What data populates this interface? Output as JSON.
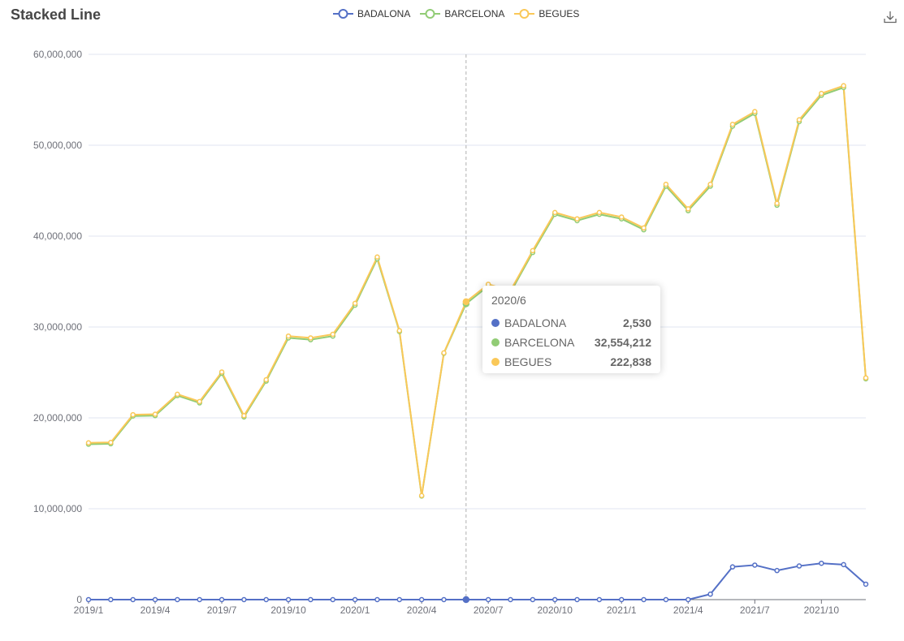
{
  "title": "Stacked Line",
  "legend": [
    {
      "name": "BADALONA",
      "color": "#5470c6"
    },
    {
      "name": "BARCELONA",
      "color": "#91cc75"
    },
    {
      "name": "BEGUES",
      "color": "#fac858"
    }
  ],
  "icons": {
    "download": "download-icon"
  },
  "tooltip": {
    "title": "2020/6",
    "rows": [
      {
        "name": "BADALONA",
        "value": "2,530",
        "color": "#5470c6"
      },
      {
        "name": "BARCELONA",
        "value": "32,554,212",
        "color": "#91cc75"
      },
      {
        "name": "BEGUES",
        "value": "222,838",
        "color": "#fac858"
      }
    ]
  },
  "chart_data": {
    "type": "line",
    "title": "Stacked Line",
    "x": [
      "2019/1",
      "2019/2",
      "2019/3",
      "2019/4",
      "2019/5",
      "2019/6",
      "2019/7",
      "2019/8",
      "2019/9",
      "2019/10",
      "2019/11",
      "2019/12",
      "2020/1",
      "2020/2",
      "2020/3",
      "2020/4",
      "2020/5",
      "2020/6",
      "2020/7",
      "2020/8",
      "2020/9",
      "2020/10",
      "2020/11",
      "2020/12",
      "2021/1",
      "2021/2",
      "2021/3",
      "2021/4",
      "2021/5",
      "2021/6",
      "2021/7",
      "2021/8",
      "2021/9",
      "2021/10",
      "2021/11",
      "2021/12"
    ],
    "x_tick_labels": [
      "2019/1",
      "2019/4",
      "2019/7",
      "2019/10",
      "2020/1",
      "2020/4",
      "2020/7",
      "2020/10",
      "2021/1",
      "2021/4",
      "2021/7",
      "2021/10"
    ],
    "ylim": [
      0,
      60000000
    ],
    "y_tick_labels": [
      "0",
      "10,000,000",
      "20,000,000",
      "30,000,000",
      "40,000,000",
      "50,000,000",
      "60,000,000"
    ],
    "grid": true,
    "legend_position": "top-center",
    "highlight_x": "2020/6",
    "series": [
      {
        "name": "BADALONA",
        "color": "#5470c6",
        "values": [
          0,
          0,
          0,
          0,
          0,
          0,
          0,
          0,
          0,
          0,
          0,
          0,
          0,
          0,
          0,
          0,
          0,
          2530,
          0,
          0,
          0,
          0,
          0,
          0,
          0,
          0,
          0,
          0,
          600000,
          3600000,
          3800000,
          3200000,
          3700000,
          4000000,
          3850000,
          1700000
        ]
      },
      {
        "name": "BARCELONA",
        "color": "#91cc75",
        "values": [
          17100000,
          17150000,
          20200000,
          20250000,
          22450000,
          21650000,
          24900000,
          20100000,
          24050000,
          28800000,
          28600000,
          29000000,
          32400000,
          37500000,
          29500000,
          11400000,
          27100000,
          32554212,
          34500000,
          33800000,
          38200000,
          42400000,
          41700000,
          42400000,
          41900000,
          40700000,
          45500000,
          42800000,
          44900000,
          48500000,
          49700000,
          40200000,
          48900000,
          51500000,
          52500000,
          22600000
        ]
      },
      {
        "name": "BEGUES",
        "color": "#fac858",
        "values": [
          150000,
          150000,
          150000,
          150000,
          150000,
          150000,
          150000,
          150000,
          150000,
          200000,
          200000,
          200000,
          200000,
          200000,
          100000,
          50000,
          50000,
          222838,
          200000,
          200000,
          200000,
          200000,
          200000,
          200000,
          200000,
          200000,
          200000,
          200000,
          200000,
          200000,
          200000,
          200000,
          200000,
          200000,
          200000,
          100000
        ]
      }
    ]
  }
}
